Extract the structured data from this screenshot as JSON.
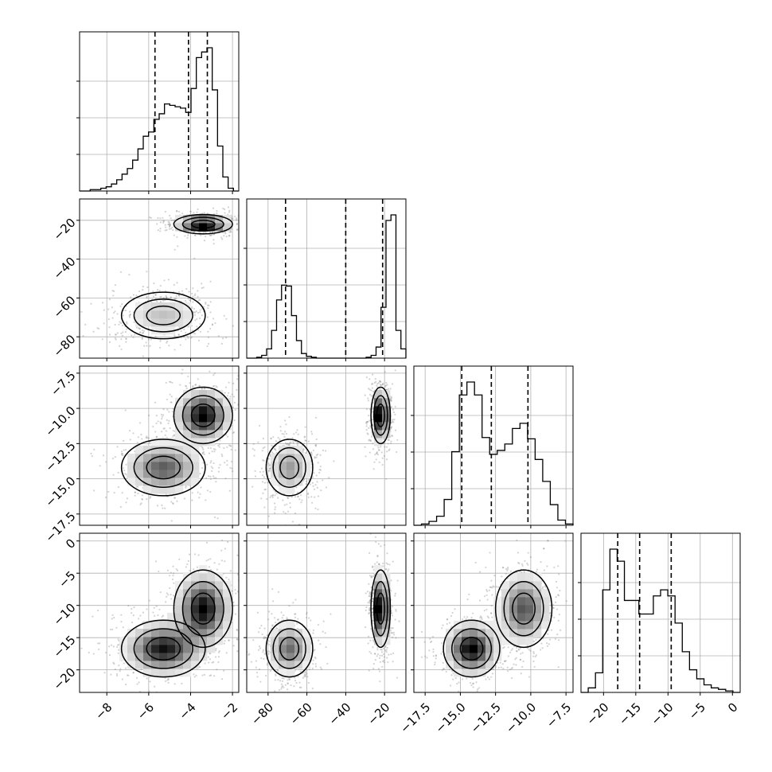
{
  "chart_data": {
    "type": "corner",
    "grid": true,
    "colors": {
      "ink": "#000000",
      "grid": "#b0b0b0",
      "scatter": "#808080"
    },
    "variables": [
      {
        "range": [
          -9.3,
          -1.7
        ],
        "ticks": [
          -8,
          -6,
          -4,
          -2
        ],
        "tick_labels": [
          "−8",
          "−6",
          "−4",
          "−2"
        ],
        "quantiles": [
          -5.7,
          -4.1,
          -3.2
        ]
      },
      {
        "range": [
          -91,
          -9
        ],
        "ticks": [
          -80,
          -60,
          -40,
          -20
        ],
        "tick_labels": [
          "−80",
          "−60",
          "−40",
          "−20"
        ],
        "quantiles": [
          -71,
          -40,
          -21
        ]
      },
      {
        "range": [
          -18.3,
          -7.0
        ],
        "ticks": [
          -17.5,
          -15.0,
          -12.5,
          -10.0,
          -7.5
        ],
        "tick_labels": [
          "−17.5",
          "−15.0",
          "−12.5",
          "−10.0",
          "−7.5"
        ],
        "quantiles": [
          -14.9,
          -12.8,
          -10.2
        ]
      },
      {
        "range": [
          -23.5,
          1.2
        ],
        "ticks": [
          -20,
          -15,
          -10,
          -5,
          0
        ],
        "tick_labels": [
          "−20",
          "−15",
          "−10",
          "−5",
          "0"
        ],
        "quantiles": [
          -17.8,
          -14.4,
          -9.5
        ]
      }
    ],
    "histograms": [
      {
        "edges": [
          -9.3,
          -1.7
        ],
        "counts": [
          0,
          0,
          1,
          1,
          2,
          3,
          5,
          8,
          12,
          16,
          22,
          30,
          39,
          42,
          51,
          55,
          62,
          61,
          60,
          59,
          56,
          73,
          95,
          99,
          102,
          72,
          32,
          10,
          2,
          0
        ]
      },
      {
        "edges": [
          -91,
          -9
        ],
        "counts": [
          0,
          0,
          1,
          3,
          10,
          30,
          63,
          79,
          78,
          46,
          19,
          5,
          2,
          1,
          0,
          0,
          0,
          0,
          0,
          0,
          0,
          0,
          0,
          0,
          1,
          3,
          12,
          55,
          149,
          155,
          30,
          10
        ]
      },
      {
        "edges": [
          -18.3,
          -7.0
        ],
        "counts": [
          0,
          1,
          3,
          7,
          20,
          57,
          101,
          111,
          101,
          68,
          55,
          58,
          63,
          75,
          79,
          67,
          51,
          34,
          16,
          4,
          1
        ]
      },
      {
        "edges": [
          -23.5,
          1.2
        ],
        "counts": [
          0,
          3,
          13,
          68,
          95,
          87,
          61,
          61,
          52,
          52,
          64,
          68,
          64,
          46,
          27,
          15,
          9,
          5,
          3,
          2,
          1,
          0
        ]
      }
    ],
    "modes": [
      {
        "weight": 0.5,
        "mean": [
          -5.3,
          -69,
          -14.2,
          -16.7
        ],
        "sd": [
          1.0,
          6,
          1.0,
          2.2
        ]
      },
      {
        "weight": 0.5,
        "mean": [
          -3.4,
          -22,
          -10.5,
          -10.5
        ],
        "sd": [
          0.7,
          2.5,
          1.0,
          3.0
        ]
      }
    ]
  }
}
